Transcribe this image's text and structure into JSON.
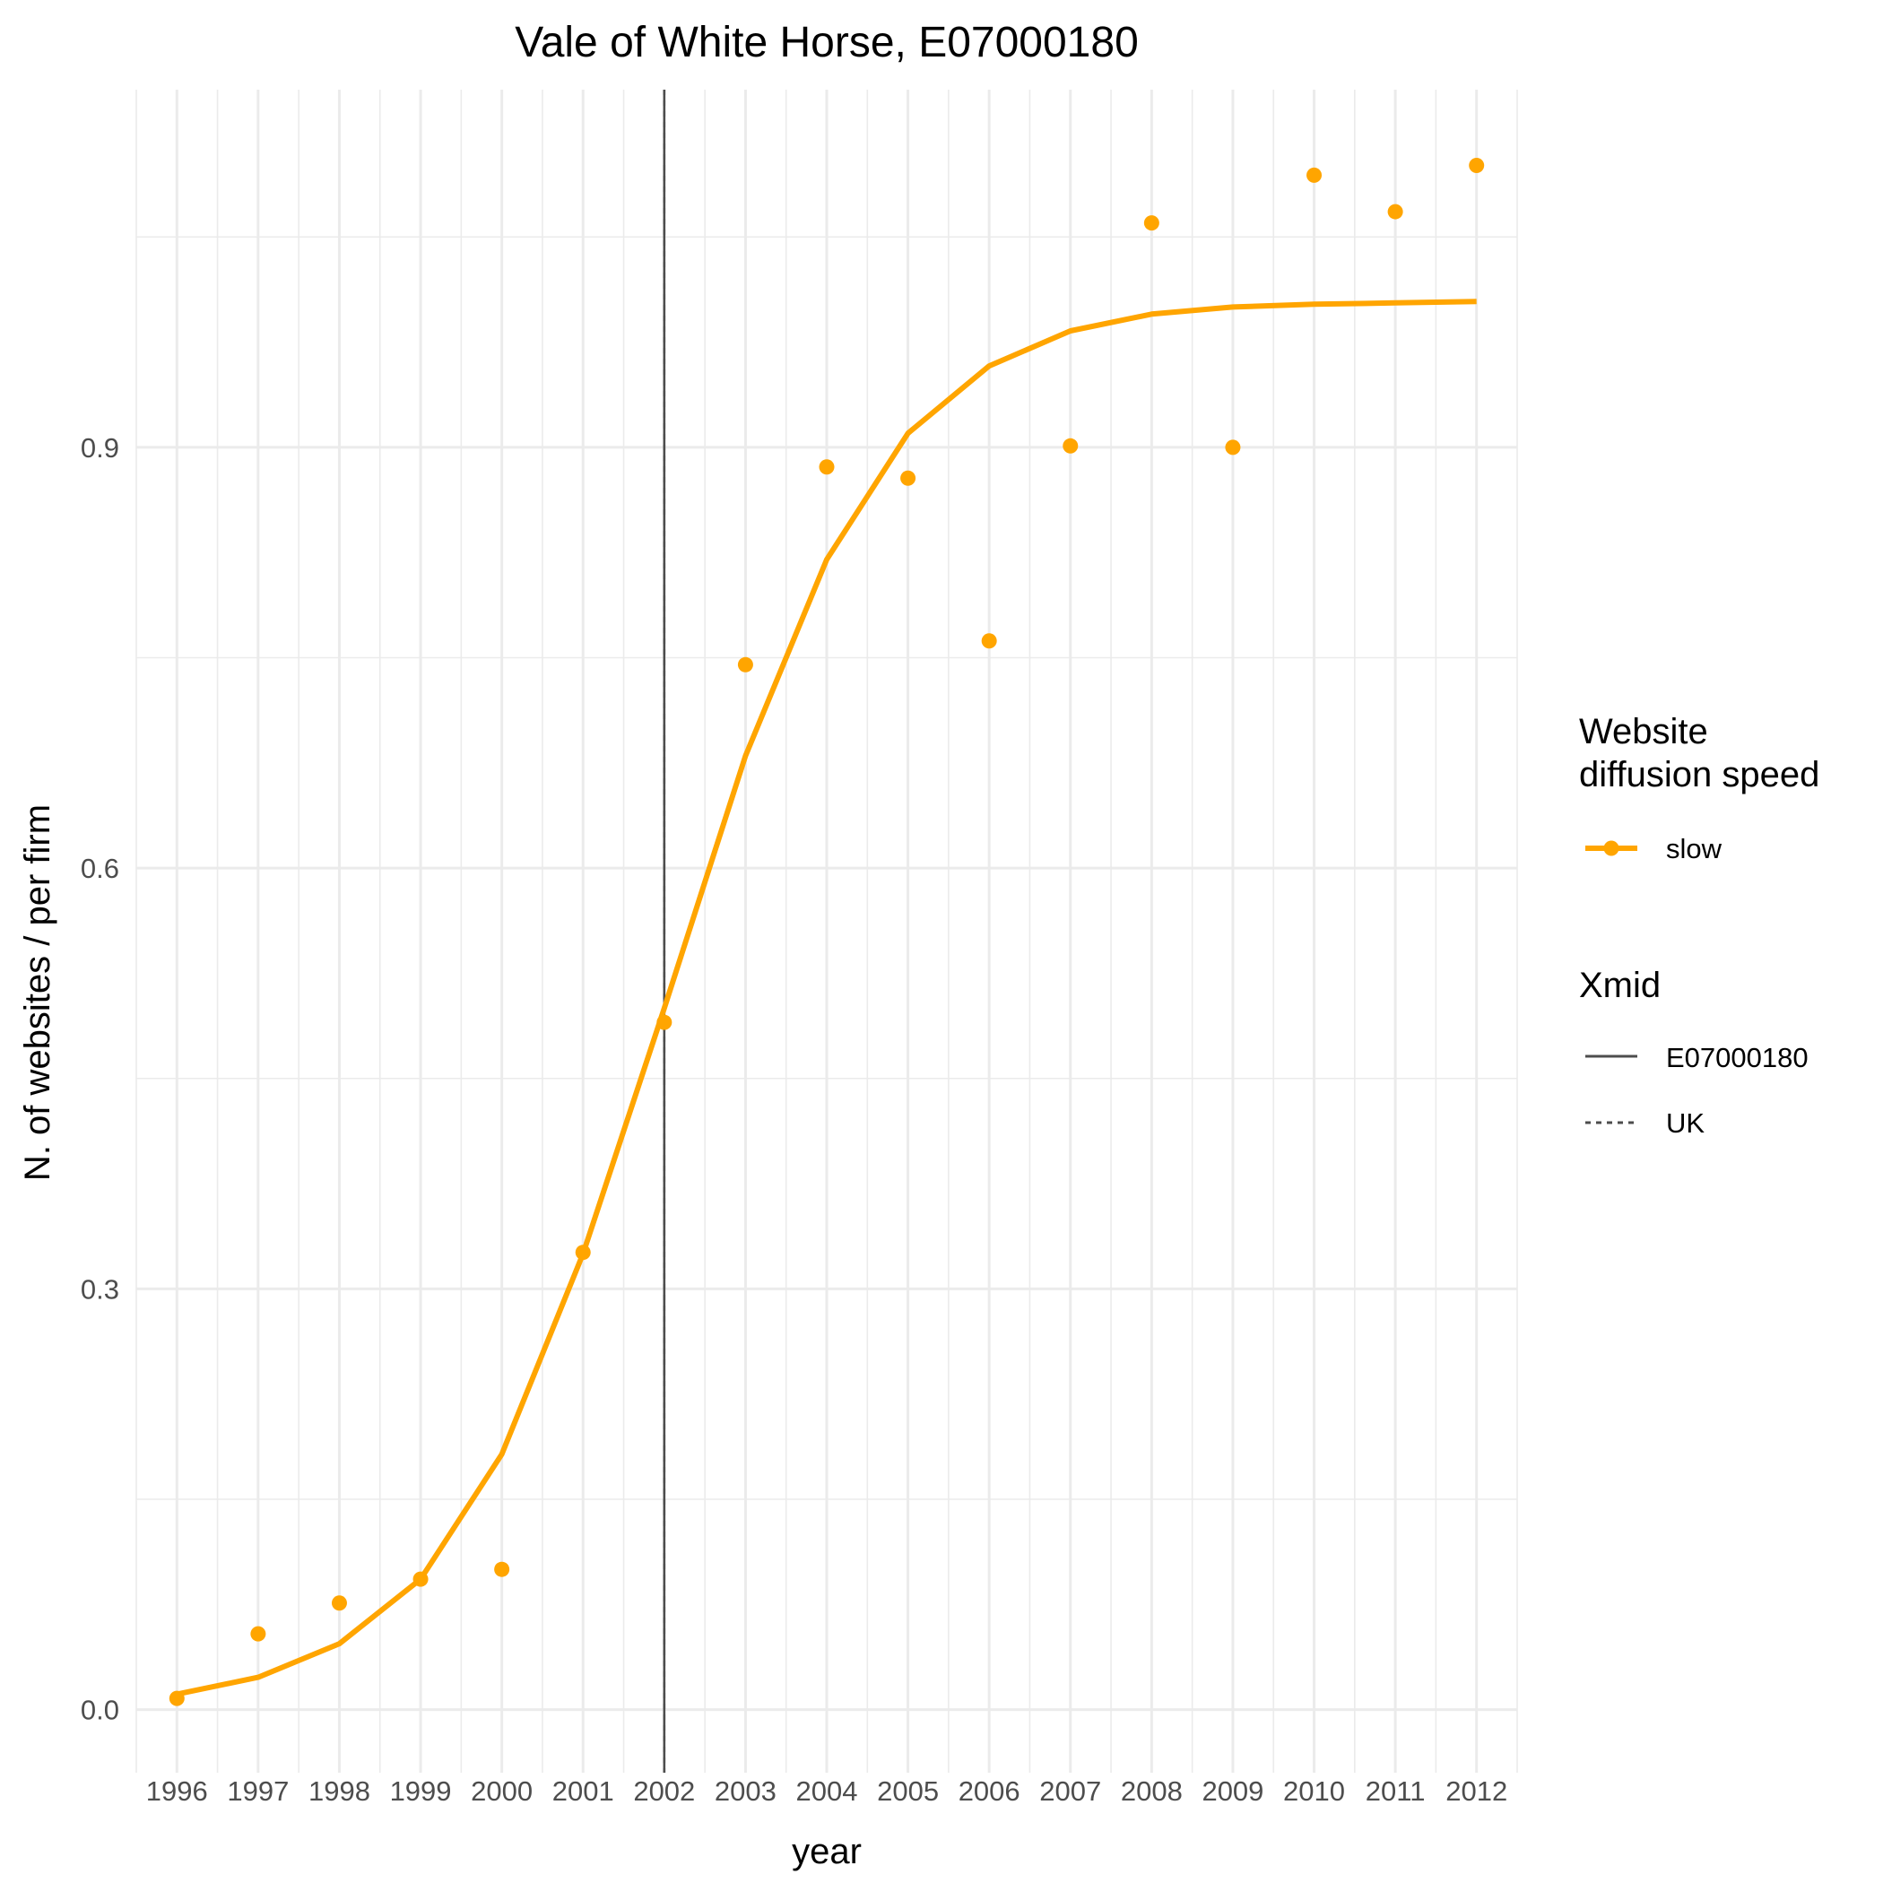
{
  "chart_data": {
    "type": "line",
    "title": "Vale of White Horse, E07000180",
    "xlabel": "year",
    "ylabel": "N. of websites / per firm",
    "xlim": [
      1995.5,
      2012.5
    ],
    "ylim": [
      -0.045,
      1.155
    ],
    "x_ticks": [
      1996,
      1997,
      1998,
      1999,
      2000,
      2001,
      2002,
      2003,
      2004,
      2005,
      2006,
      2007,
      2008,
      2009,
      2010,
      2011,
      2012
    ],
    "y_ticks": [
      0.0,
      0.3,
      0.6,
      0.9
    ],
    "y_tick_labels": [
      "0.0",
      "0.3",
      "0.6",
      "0.9"
    ],
    "grid": true,
    "legend_position": "right",
    "colors": {
      "slow": "#FFA500",
      "vline": "#4d4d4d"
    },
    "series": [
      {
        "name": "slow",
        "kind": "fitted-line",
        "x": [
          1996,
          1997,
          1998,
          1999,
          2000,
          2001,
          2002,
          2003,
          2004,
          2005,
          2006,
          2007,
          2008,
          2009,
          2010,
          2011,
          2012
        ],
        "y": [
          0.011,
          0.023,
          0.047,
          0.093,
          0.182,
          0.325,
          0.5,
          0.68,
          0.82,
          0.91,
          0.958,
          0.983,
          0.995,
          1.0,
          1.002,
          1.003,
          1.004
        ]
      },
      {
        "name": "slow",
        "kind": "points",
        "x": [
          1996,
          1997,
          1998,
          1999,
          2000,
          2001,
          2002,
          2003,
          2004,
          2005,
          2006,
          2007,
          2008,
          2009,
          2010,
          2011,
          2012
        ],
        "y": [
          0.008,
          0.054,
          0.076,
          0.093,
          0.1,
          0.326,
          0.49,
          0.745,
          0.886,
          0.878,
          0.762,
          0.901,
          1.06,
          0.9,
          1.094,
          1.068,
          1.101
        ]
      }
    ],
    "vlines": [
      {
        "name": "E07000180",
        "x": 2002,
        "style": "solid"
      },
      {
        "name": "UK",
        "x": 2002,
        "style": "dashed"
      }
    ],
    "legends": [
      {
        "title": "Website\ndiffusion speed",
        "title_lines": [
          "Website",
          "diffusion speed"
        ],
        "entries": [
          {
            "label": "slow"
          }
        ]
      },
      {
        "title": "Xmid",
        "entries": [
          {
            "label": "E07000180"
          },
          {
            "label": "UK"
          }
        ]
      }
    ]
  }
}
